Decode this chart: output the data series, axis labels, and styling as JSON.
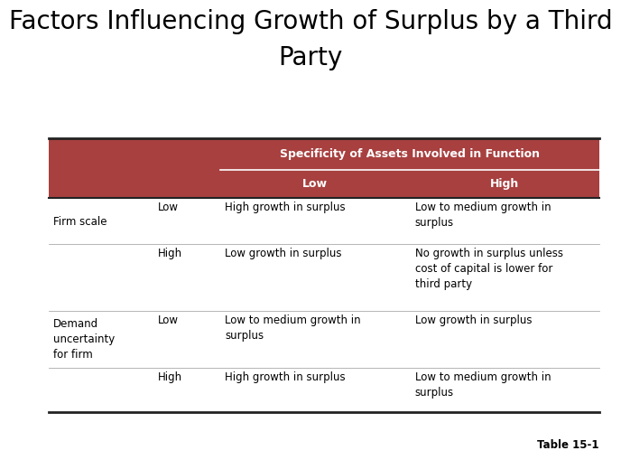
{
  "title_line1": "Factors Influencing Growth of Surplus by a Third",
  "title_line2": "Party",
  "title_fontsize": 20,
  "header_label": "Specificity of Assets Involved in Function",
  "header_bg": "#a84040",
  "header_text_color": "#ffffff",
  "subheader_low": "Low",
  "subheader_high": "High",
  "subheader_bg": "#a84040",
  "subheader_text_color": "#ffffff",
  "table_border_color": "#222222",
  "row_sep_color": "#aaaaaa",
  "background_color": "#ffffff",
  "table_font_size": 8.5,
  "caption": "Table 15-1",
  "rows": [
    {
      "row_label": "Firm scale",
      "sub_label": "Low",
      "col_low": "High growth in surplus",
      "col_high": "Low to medium growth in\nsurplus"
    },
    {
      "row_label": "",
      "sub_label": "High",
      "col_low": "Low growth in surplus",
      "col_high": "No growth in surplus unless\ncost of capital is lower for\nthird party"
    },
    {
      "row_label": "Demand\nuncertainty\nfor firm",
      "sub_label": "Low",
      "col_low": "Low to medium growth in\nsurplus",
      "col_high": "Low growth in surplus"
    },
    {
      "row_label": "",
      "sub_label": "High",
      "col_low": "High growth in surplus",
      "col_high": "Low to medium growth in\nsurplus"
    }
  ]
}
